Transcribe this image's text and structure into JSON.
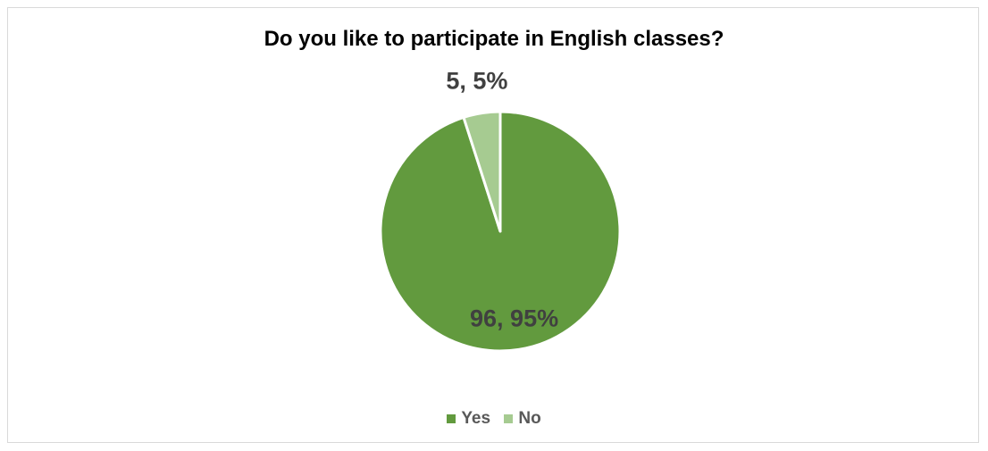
{
  "chart_data": {
    "type": "pie",
    "title": "Do you like to participate in English classes?",
    "categories": [
      "Yes",
      "No"
    ],
    "values": [
      96,
      5
    ],
    "percentages": [
      "95%",
      "5%"
    ],
    "data_labels": [
      "96, 95%",
      "5, 5%"
    ],
    "colors": [
      "#629a3e",
      "#a6cb91"
    ],
    "legend_position": "bottom",
    "legend": [
      "Yes",
      "No"
    ]
  }
}
